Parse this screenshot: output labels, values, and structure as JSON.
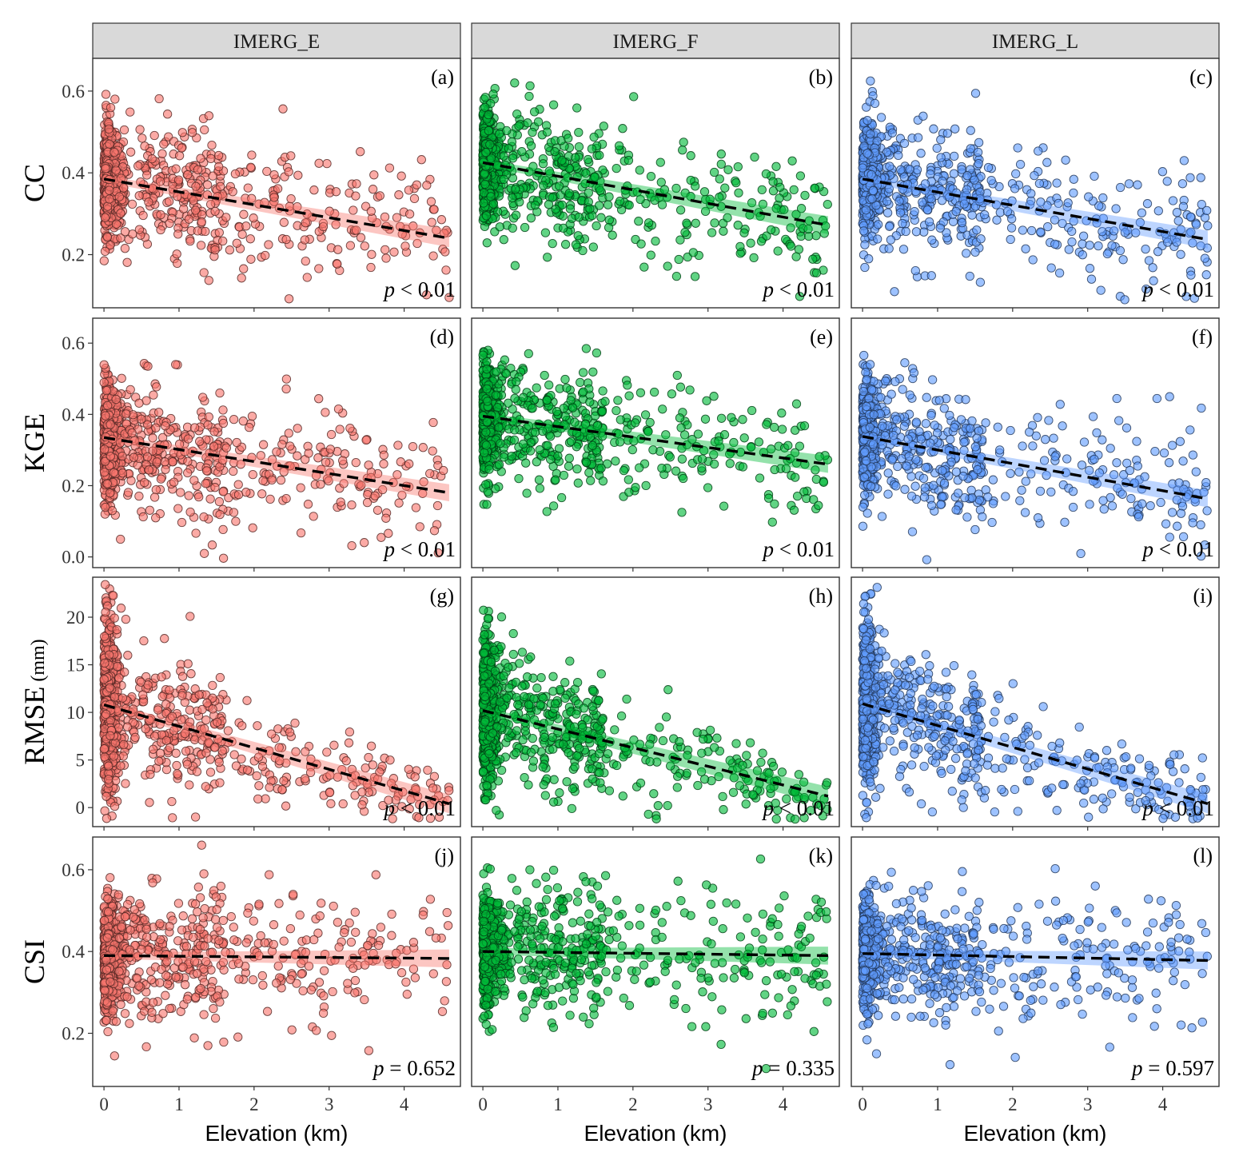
{
  "chart_data": {
    "type": "scatter",
    "column_titles": [
      "IMERG_E",
      "IMERG_F",
      "IMERG_L"
    ],
    "column_colors": [
      "#F8766D",
      "#00BA38",
      "#619CFF"
    ],
    "xlabel": "Elevation (km)",
    "xlim": [
      -0.15,
      4.75
    ],
    "x_ticks": [
      0,
      1,
      2,
      3,
      4
    ],
    "rows": [
      {
        "metric": "CC",
        "unit": "",
        "ylim": [
          0.07,
          0.68
        ],
        "y_ticks": [
          0.2,
          0.4,
          0.6
        ],
        "y_tick_labels": [
          "0.2",
          "0.4",
          "0.6"
        ],
        "panels": [
          {
            "letter": "(a)",
            "p_text": "< 0.01",
            "fit": {
              "x": [
                0,
                4.6
              ],
              "y": [
                0.385,
                0.24
              ]
            },
            "band": 0.022
          },
          {
            "letter": "(b)",
            "p_text": "< 0.01",
            "fit": {
              "x": [
                0,
                4.6
              ],
              "y": [
                0.425,
                0.272
              ]
            },
            "band": 0.022
          },
          {
            "letter": "(c)",
            "p_text": "< 0.01",
            "fit": {
              "x": [
                0,
                4.6
              ],
              "y": [
                0.385,
                0.237
              ]
            },
            "band": 0.022
          }
        ]
      },
      {
        "metric": "KGE",
        "unit": "",
        "ylim": [
          -0.03,
          0.67
        ],
        "y_ticks": [
          0.0,
          0.2,
          0.4,
          0.6
        ],
        "y_tick_labels": [
          "0.0",
          "0.2",
          "0.4",
          "0.6"
        ],
        "panels": [
          {
            "letter": "(d)",
            "p_text": "< 0.01",
            "fit": {
              "x": [
                0,
                4.6
              ],
              "y": [
                0.335,
                0.18
              ]
            },
            "band": 0.024
          },
          {
            "letter": "(e)",
            "p_text": "< 0.01",
            "fit": {
              "x": [
                0,
                4.6
              ],
              "y": [
                0.395,
                0.26
              ]
            },
            "band": 0.024
          },
          {
            "letter": "(f)",
            "p_text": "< 0.01",
            "fit": {
              "x": [
                0,
                4.6
              ],
              "y": [
                0.338,
                0.163
              ]
            },
            "band": 0.024
          }
        ]
      },
      {
        "metric": "RMSE",
        "unit": "(mm)",
        "ylim": [
          -2,
          24.2
        ],
        "y_ticks": [
          0,
          5,
          10,
          15,
          20
        ],
        "y_tick_labels": [
          "0",
          "5",
          "10",
          "15",
          "20"
        ],
        "panels": [
          {
            "letter": "(g)",
            "p_text": "< 0.01",
            "fit": {
              "x": [
                0,
                4.6
              ],
              "y": [
                10.8,
                0.4
              ]
            },
            "band": 1.0
          },
          {
            "letter": "(h)",
            "p_text": "< 0.01",
            "fit": {
              "x": [
                0,
                4.6
              ],
              "y": [
                10.2,
                1.2
              ]
            },
            "band": 1.0
          },
          {
            "letter": "(i)",
            "p_text": "< 0.01",
            "fit": {
              "x": [
                0,
                4.6
              ],
              "y": [
                10.9,
                0.4
              ]
            },
            "band": 1.0
          }
        ]
      },
      {
        "metric": "CSI",
        "unit": "",
        "ylim": [
          0.07,
          0.68
        ],
        "y_ticks": [
          0.2,
          0.4,
          0.6
        ],
        "y_tick_labels": [
          "0.2",
          "0.4",
          "0.6"
        ],
        "panels": [
          {
            "letter": "(j)",
            "p_text": "= 0.652",
            "fit": {
              "x": [
                0,
                4.6
              ],
              "y": [
                0.39,
                0.383
              ]
            },
            "band": 0.022
          },
          {
            "letter": "(k)",
            "p_text": "= 0.335",
            "fit": {
              "x": [
                0,
                4.6
              ],
              "y": [
                0.4,
                0.39
              ]
            },
            "band": 0.022
          },
          {
            "letter": "(l)",
            "p_text": "= 0.597",
            "fit": {
              "x": [
                0,
                4.6
              ],
              "y": [
                0.395,
                0.378
              ]
            },
            "band": 0.022
          }
        ]
      }
    ],
    "points_per_panel": 900
  }
}
